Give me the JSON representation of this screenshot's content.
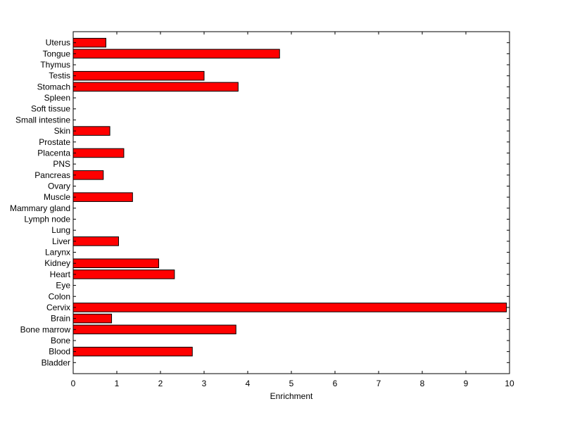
{
  "chart_data": {
    "type": "bar",
    "orientation": "horizontal",
    "xlabel": "Enrichment",
    "ylabel": "",
    "title": "",
    "xlim": [
      0,
      10
    ],
    "xticks": [
      0,
      1,
      2,
      3,
      4,
      5,
      6,
      7,
      8,
      9,
      10
    ],
    "grid": false,
    "bar_color": "#ff0000",
    "bar_edge_color": "#000000",
    "categories": [
      "Bladder",
      "Blood",
      "Bone",
      "Bone marrow",
      "Brain",
      "Cervix",
      "Colon",
      "Eye",
      "Heart",
      "Kidney",
      "Larynx",
      "Liver",
      "Lung",
      "Lymph node",
      "Mammary gland",
      "Muscle",
      "Ovary",
      "Pancreas",
      "PNS",
      "Placenta",
      "Prostate",
      "Skin",
      "Small intestine",
      "Soft tissue",
      "Spleen",
      "Stomach",
      "Testis",
      "Thymus",
      "Tongue",
      "Uterus"
    ],
    "values": [
      0,
      2.73,
      0,
      3.73,
      0.88,
      9.93,
      0,
      0,
      2.32,
      1.96,
      0,
      1.04,
      0,
      0,
      0,
      1.36,
      0,
      0.69,
      0,
      1.16,
      0,
      0.84,
      0,
      0,
      0,
      3.78,
      3.0,
      0,
      4.73,
      0.75
    ]
  }
}
